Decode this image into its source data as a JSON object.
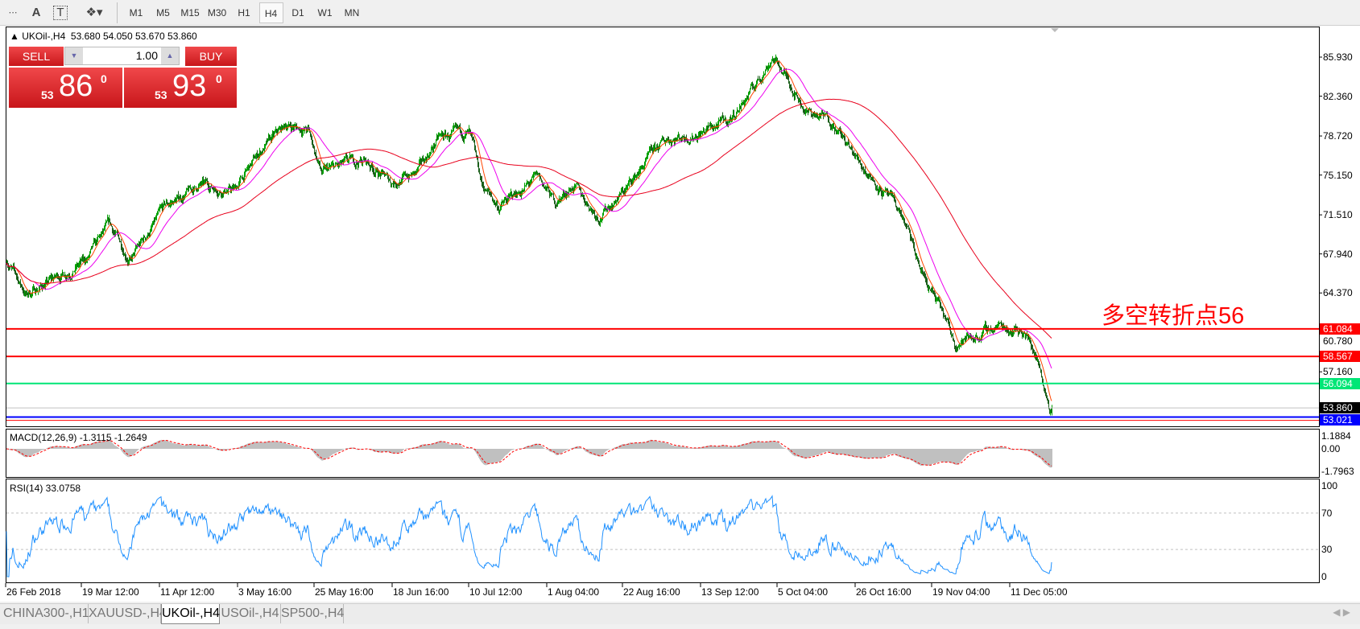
{
  "toolbar": {
    "icons": [
      "period-separator-icon",
      "text-label-icon",
      "text-box-icon",
      "arrows-icon"
    ],
    "text_icon": "A",
    "timeframes": [
      "M1",
      "M5",
      "M15",
      "M30",
      "H1",
      "H4",
      "D1",
      "W1",
      "MN"
    ],
    "active": "H4"
  },
  "chart": {
    "symbol_line": "UKOil-,H4  53.680 54.050 53.670 53.860",
    "sell_label": "SELL",
    "buy_label": "BUY",
    "volume": "1.00",
    "sell_big": "86",
    "sell_small": "53",
    "sell_sup": "0",
    "buy_big": "93",
    "buy_small": "53",
    "buy_sup": "0",
    "annotation": "多空转折点56",
    "macd_label": "MACD(12,26,9) -1.3115 -1.2649",
    "rsi_label": "RSI(14) 33.0758"
  },
  "colors": {
    "candle": "#00a000",
    "ma_fast": "#ff4500",
    "ma_mid": "#ee00ee",
    "ma_slow": "#e8001c",
    "rsi": "#1e90ff",
    "macd_hist": "#c0c0c0",
    "macd_signal": "#ff0000",
    "level_red": "#ff0000",
    "level_green": "#00e676",
    "level_blue": "#0000ff",
    "bid": "#000000"
  },
  "chart_data": {
    "type": "candlestick",
    "price_ticks": [
      "85.930",
      "82.360",
      "78.720",
      "75.150",
      "71.510",
      "67.940",
      "64.370",
      "60.780",
      "57.160"
    ],
    "levels": [
      {
        "value": "61.084",
        "color": "#ff0000"
      },
      {
        "value": "58.567",
        "color": "#ff0000"
      },
      {
        "value": "56.094",
        "color": "#00e676"
      },
      {
        "value": "53.860",
        "color": "#000000"
      },
      {
        "value": "53.021",
        "color": "#0000ff"
      }
    ],
    "close_path": [
      [
        0,
        67.4
      ],
      [
        24,
        64.2
      ],
      [
        100,
        67.4
      ],
      [
        127,
        70.5
      ],
      [
        154,
        67.4
      ],
      [
        197,
        72.2
      ],
      [
        240,
        74.2
      ],
      [
        283,
        73.8
      ],
      [
        315,
        77.3
      ],
      [
        348,
        79.7
      ],
      [
        374,
        79.3
      ],
      [
        391,
        75.3
      ],
      [
        423,
        76.1
      ],
      [
        444,
        76.5
      ],
      [
        477,
        74.5
      ],
      [
        509,
        75.3
      ],
      [
        536,
        78.5
      ],
      [
        574,
        78.9
      ],
      [
        590,
        74.2
      ],
      [
        611,
        72.2
      ],
      [
        660,
        74.9
      ],
      [
        681,
        72.6
      ],
      [
        703,
        74.2
      ],
      [
        735,
        71.4
      ],
      [
        768,
        73.8
      ],
      [
        800,
        76.9
      ],
      [
        821,
        78.5
      ],
      [
        854,
        78.9
      ],
      [
        897,
        80.1
      ],
      [
        929,
        83.3
      ],
      [
        951,
        86.0
      ],
      [
        972,
        83.7
      ],
      [
        994,
        80.9
      ],
      [
        1026,
        80.1
      ],
      [
        1048,
        77.3
      ],
      [
        1080,
        74.5
      ],
      [
        1112,
        71.4
      ],
      [
        1134,
        66.6
      ],
      [
        1161,
        62.6
      ],
      [
        1177,
        59.8
      ],
      [
        1209,
        60.6
      ],
      [
        1231,
        61.4
      ],
      [
        1263,
        61.0
      ],
      [
        1279,
        58.6
      ],
      [
        1295,
        54.2
      ],
      [
        1298,
        53.86
      ]
    ],
    "macd_ticks": [
      "1.1884",
      "0.00",
      "-1.7963"
    ],
    "rsi_ticks": [
      "100",
      "70",
      "30",
      "0"
    ],
    "date_labels": [
      "26 Feb 2018",
      "19 Mar 12:00",
      "11 Apr 12:00",
      "3 May 16:00",
      "25 May 16:00",
      "18 Jun 16:00",
      "10 Jul 12:00",
      "1 Aug 04:00",
      "22 Aug 16:00",
      "13 Sep 12:00",
      "5 Oct 04:00",
      "26 Oct 16:00",
      "19 Nov 04:00",
      "11 Dec 05:00"
    ]
  },
  "tabs": [
    "CHINA300-,H1",
    "XAUUSD-,H4",
    "UKOil-,H4",
    "USOil-,H4",
    "SP500-,H4"
  ],
  "active_tab": "UKOil-,H4"
}
